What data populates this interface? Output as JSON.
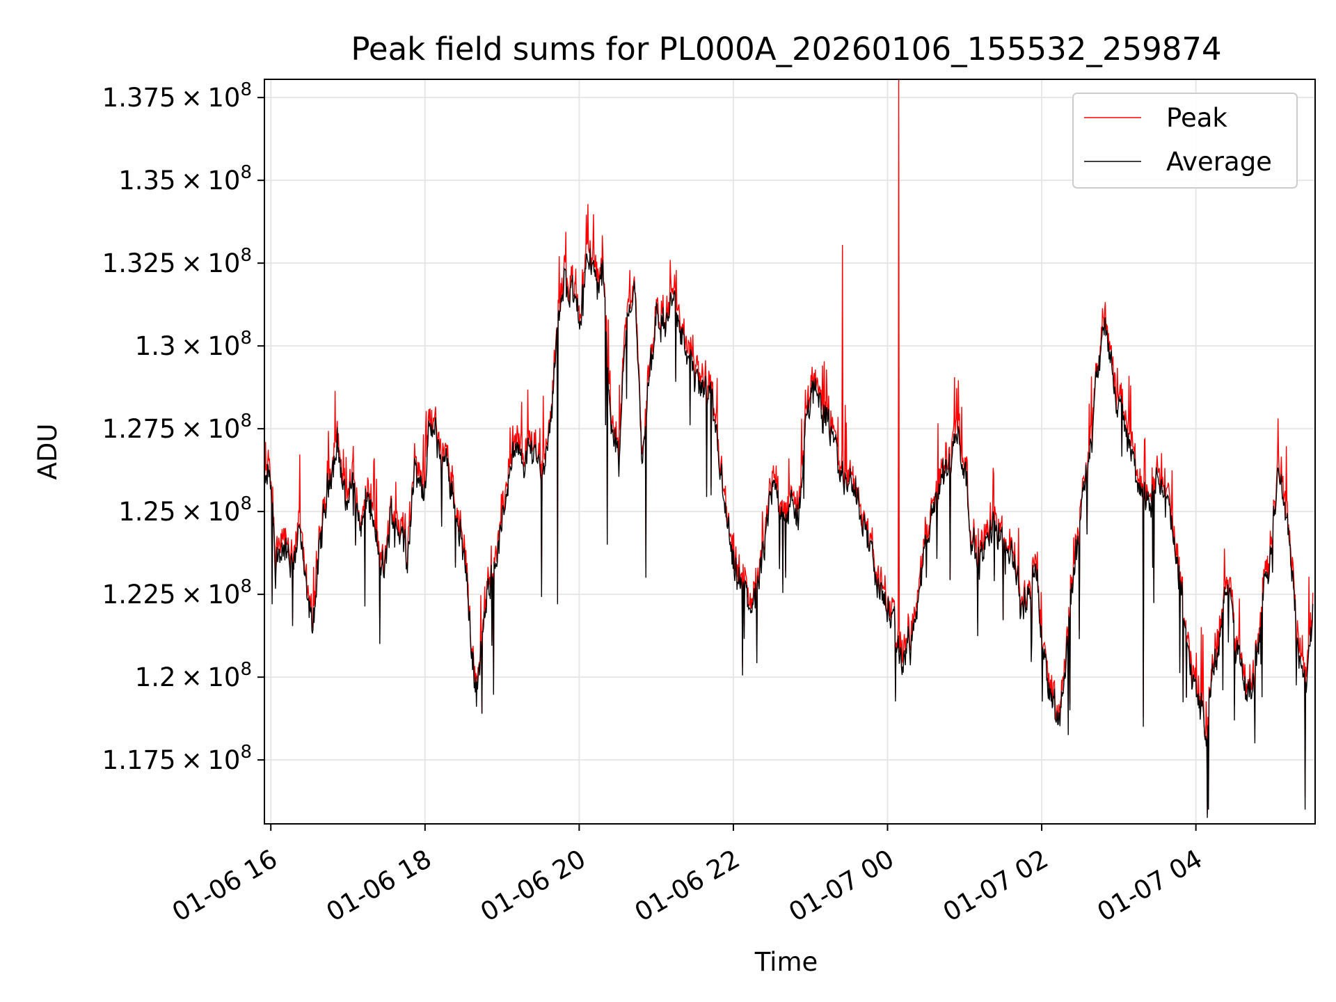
{
  "chart_data": {
    "type": "line",
    "title": "Peak field sums for PL000A_20260106_155532_259874",
    "xlabel": "Time",
    "ylabel": "ADU",
    "x_unit": "hours since 01-06 15:55",
    "xlim": [
      0,
      13.63
    ],
    "ylim": [
      115570000.0,
      138050000.0
    ],
    "x_ticks": [
      {
        "label": "01-06 16",
        "value": 0.0833
      },
      {
        "label": "01-06 18",
        "value": 2.0833
      },
      {
        "label": "01-06 20",
        "value": 4.0833
      },
      {
        "label": "01-06 22",
        "value": 6.0833
      },
      {
        "label": "01-07 00",
        "value": 8.0833
      },
      {
        "label": "01-07 02",
        "value": 10.0833
      },
      {
        "label": "01-07 04",
        "value": 12.0833
      }
    ],
    "y_ticks": [
      {
        "value": 117500000.0,
        "mantissa": "1.175"
      },
      {
        "value": 120000000.0,
        "mantissa": "1.2"
      },
      {
        "value": 122500000.0,
        "mantissa": "1.225"
      },
      {
        "value": 125000000.0,
        "mantissa": "1.25"
      },
      {
        "value": 127500000.0,
        "mantissa": "1.275"
      },
      {
        "value": 130000000.0,
        "mantissa": "1.3"
      },
      {
        "value": 132500000.0,
        "mantissa": "1.325"
      },
      {
        "value": 135000000.0,
        "mantissa": "1.35"
      },
      {
        "value": 137500000.0,
        "mantissa": "1.375"
      }
    ],
    "y_tick_times": "×",
    "y_tick_base": "10",
    "y_tick_exponent": "8",
    "grid": true,
    "legend_position": "top-right",
    "series": [
      {
        "name": "Peak",
        "color": "#ff0000",
        "spikes": [
          {
            "x": 7.5,
            "y": 133050000.0
          },
          {
            "x": 8.23,
            "y": 138050000.0
          }
        ]
      },
      {
        "name": "Average",
        "color": "#000000"
      }
    ],
    "anchors": [
      [
        0.0,
        125500000.0
      ],
      [
        0.06,
        126200000.0
      ],
      [
        0.15,
        123500000.0
      ],
      [
        0.25,
        124000000.0
      ],
      [
        0.35,
        123200000.0
      ],
      [
        0.45,
        124500000.0
      ],
      [
        0.55,
        122300000.0
      ],
      [
        0.62,
        121500000.0
      ],
      [
        0.72,
        123800000.0
      ],
      [
        0.85,
        126200000.0
      ],
      [
        0.95,
        127000000.0
      ],
      [
        1.05,
        125200000.0
      ],
      [
        1.15,
        126000000.0
      ],
      [
        1.25,
        124500000.0
      ],
      [
        1.35,
        125500000.0
      ],
      [
        1.45,
        124000000.0
      ],
      [
        1.55,
        123000000.0
      ],
      [
        1.65,
        125000000.0
      ],
      [
        1.75,
        124500000.0
      ],
      [
        1.85,
        123800000.0
      ],
      [
        1.95,
        126200000.0
      ],
      [
        2.05,
        125500000.0
      ],
      [
        2.15,
        127500000.0
      ],
      [
        2.25,
        127000000.0
      ],
      [
        2.38,
        126200000.0
      ],
      [
        2.5,
        125000000.0
      ],
      [
        2.6,
        123500000.0
      ],
      [
        2.68,
        121200000.0
      ],
      [
        2.75,
        119400000.0
      ],
      [
        2.82,
        121000000.0
      ],
      [
        2.9,
        122500000.0
      ],
      [
        3.0,
        123500000.0
      ],
      [
        3.1,
        124800000.0
      ],
      [
        3.2,
        126800000.0
      ],
      [
        3.35,
        126500000.0
      ],
      [
        3.5,
        127000000.0
      ],
      [
        3.6,
        126200000.0
      ],
      [
        3.7,
        127500000.0
      ],
      [
        3.8,
        130500000.0
      ],
      [
        3.9,
        132000000.0
      ],
      [
        4.0,
        131500000.0
      ],
      [
        4.1,
        131000000.0
      ],
      [
        4.2,
        133000000.0
      ],
      [
        4.3,
        131800000.0
      ],
      [
        4.4,
        132000000.0
      ],
      [
        4.5,
        127500000.0
      ],
      [
        4.6,
        126500000.0
      ],
      [
        4.7,
        131000000.0
      ],
      [
        4.8,
        131800000.0
      ],
      [
        4.9,
        126500000.0
      ],
      [
        5.0,
        129000000.0
      ],
      [
        5.1,
        131000000.0
      ],
      [
        5.2,
        130500000.0
      ],
      [
        5.3,
        131500000.0
      ],
      [
        5.4,
        130500000.0
      ],
      [
        5.5,
        129500000.0
      ],
      [
        5.6,
        129000000.0
      ],
      [
        5.7,
        128500000.0
      ],
      [
        5.8,
        128200000.0
      ],
      [
        5.9,
        126500000.0
      ],
      [
        6.0,
        124500000.0
      ],
      [
        6.1,
        123000000.0
      ],
      [
        6.2,
        122600000.0
      ],
      [
        6.32,
        122200000.0
      ],
      [
        6.42,
        122800000.0
      ],
      [
        6.52,
        124500000.0
      ],
      [
        6.6,
        125800000.0
      ],
      [
        6.72,
        125200000.0
      ],
      [
        6.82,
        125000000.0
      ],
      [
        6.92,
        124800000.0
      ],
      [
        7.0,
        127000000.0
      ],
      [
        7.1,
        128800000.0
      ],
      [
        7.2,
        128500000.0
      ],
      [
        7.3,
        127800000.0
      ],
      [
        7.4,
        126800000.0
      ],
      [
        7.5,
        126000000.0
      ],
      [
        7.6,
        126000000.0
      ],
      [
        7.75,
        125000000.0
      ],
      [
        7.85,
        124000000.0
      ],
      [
        7.95,
        122800000.0
      ],
      [
        8.05,
        122300000.0
      ],
      [
        8.15,
        121500000.0
      ],
      [
        8.25,
        120500000.0
      ],
      [
        8.38,
        121000000.0
      ],
      [
        8.48,
        122200000.0
      ],
      [
        8.58,
        124000000.0
      ],
      [
        8.7,
        125000000.0
      ],
      [
        8.8,
        126200000.0
      ],
      [
        8.9,
        126500000.0
      ],
      [
        9.0,
        127500000.0
      ],
      [
        9.1,
        126000000.0
      ],
      [
        9.22,
        123500000.0
      ],
      [
        9.35,
        123800000.0
      ],
      [
        9.48,
        124800000.0
      ],
      [
        9.6,
        124000000.0
      ],
      [
        9.72,
        123800000.0
      ],
      [
        9.82,
        122000000.0
      ],
      [
        9.92,
        122500000.0
      ],
      [
        10.0,
        123500000.0
      ],
      [
        10.1,
        121000000.0
      ],
      [
        10.2,
        119500000.0
      ],
      [
        10.3,
        118700000.0
      ],
      [
        10.4,
        120500000.0
      ],
      [
        10.5,
        123200000.0
      ],
      [
        10.6,
        125000000.0
      ],
      [
        10.7,
        126500000.0
      ],
      [
        10.8,
        129000000.0
      ],
      [
        10.9,
        130500000.0
      ],
      [
        11.0,
        129200000.0
      ],
      [
        11.1,
        128000000.0
      ],
      [
        11.2,
        127200000.0
      ],
      [
        11.3,
        126200000.0
      ],
      [
        11.4,
        125500000.0
      ],
      [
        11.5,
        125000000.0
      ],
      [
        11.6,
        126000000.0
      ],
      [
        11.7,
        125500000.0
      ],
      [
        11.8,
        124000000.0
      ],
      [
        11.9,
        122500000.0
      ],
      [
        12.0,
        120500000.0
      ],
      [
        12.1,
        119500000.0
      ],
      [
        12.2,
        118500000.0
      ],
      [
        12.3,
        120000000.0
      ],
      [
        12.4,
        121200000.0
      ],
      [
        12.5,
        123000000.0
      ],
      [
        12.6,
        121000000.0
      ],
      [
        12.72,
        119500000.0
      ],
      [
        12.85,
        120000000.0
      ],
      [
        12.95,
        122500000.0
      ],
      [
        13.05,
        124000000.0
      ],
      [
        13.15,
        126000000.0
      ],
      [
        13.25,
        125000000.0
      ],
      [
        13.35,
        123000000.0
      ],
      [
        13.42,
        120500000.0
      ],
      [
        13.52,
        119500000.0
      ],
      [
        13.6,
        122000000.0
      ]
    ],
    "noise_amplitude": 450000.0,
    "dips": [
      [
        0.1,
        122200000.0
      ],
      [
        1.5,
        121000000.0
      ],
      [
        3.8,
        122200000.0
      ],
      [
        4.45,
        124000000.0
      ],
      [
        4.95,
        123000000.0
      ],
      [
        10.45,
        119000000.0
      ],
      [
        11.4,
        118500000.0
      ],
      [
        12.25,
        116000000.0
      ],
      [
        12.85,
        118000000.0
      ],
      [
        13.5,
        116000000.0
      ]
    ]
  }
}
